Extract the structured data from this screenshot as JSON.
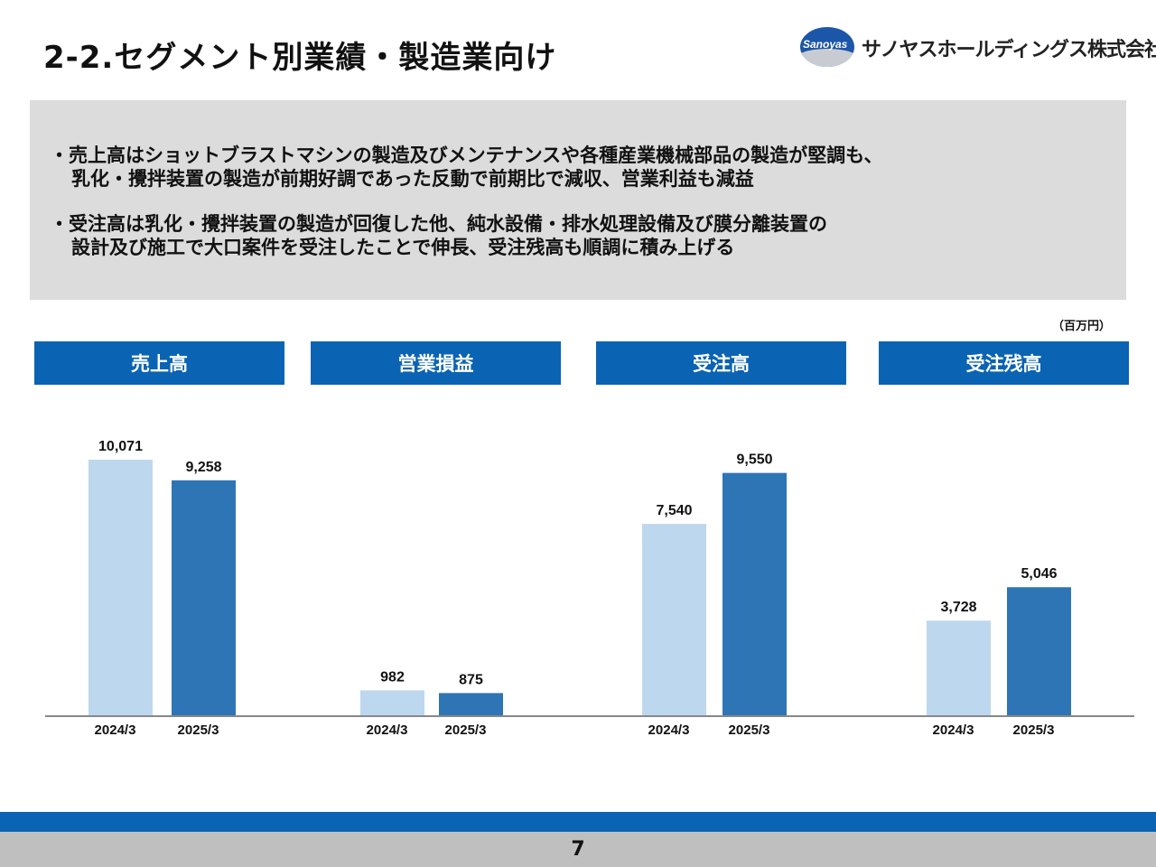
{
  "title": "2-2.セグメント別業績・製造業向け",
  "logo": {
    "brand": "Sanoyas",
    "company": "サノヤスホールディングス株式会社"
  },
  "summary": {
    "bullets": [
      {
        "line1": "・売上高はショットブラストマシンの製造及びメンテナンスや各種産業機械部品の製造が堅調も、",
        "line2": "乳化・攪拌装置の製造が前期好調であった反動で前期比で減収、営業利益も減益"
      },
      {
        "line1": "・受注高は乳化・攪拌装置の製造が回復した他、純水設備・排水処理設備及び膜分離装置の",
        "line2": "設計及び施工で大口案件を受注したことで伸長、受注残高も順調に積み上げる"
      }
    ]
  },
  "unit": "（百万円）",
  "colors": {
    "header": "#0a63b3",
    "prior": "#bdd7ee",
    "current": "#2e75b6"
  },
  "chart_data": [
    {
      "type": "bar",
      "title": "売上高",
      "categories": [
        "2024/3",
        "2025/3"
      ],
      "values": [
        10071,
        9258
      ],
      "labels": [
        "10,071",
        "9,258"
      ]
    },
    {
      "type": "bar",
      "title": "営業損益",
      "categories": [
        "2024/3",
        "2025/3"
      ],
      "values": [
        982,
        875
      ],
      "labels": [
        "982",
        "875"
      ]
    },
    {
      "type": "bar",
      "title": "受注高",
      "categories": [
        "2024/3",
        "2025/3"
      ],
      "values": [
        7540,
        9550
      ],
      "labels": [
        "7,540",
        "9,550"
      ]
    },
    {
      "type": "bar",
      "title": "受注残高",
      "categories": [
        "2024/3",
        "2025/3"
      ],
      "values": [
        3728,
        5046
      ],
      "labels": [
        "3,728",
        "5,046"
      ]
    }
  ],
  "page_number": "7"
}
